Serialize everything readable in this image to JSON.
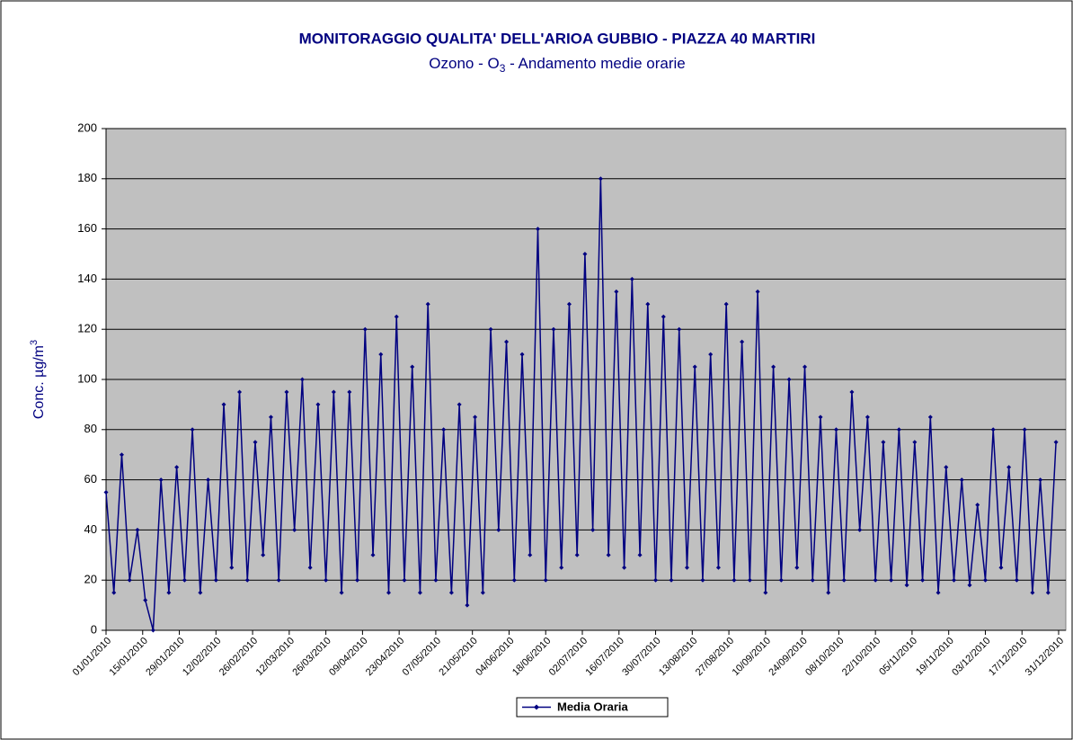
{
  "chart_data": {
    "type": "line",
    "title": "MONITORAGGIO QUALITA' DELL'ARIOA GUBBIO - PIAZZA 40 MARTIRI",
    "subtitle": [
      "Ozono - O",
      "3",
      " - Andamento medie orarie"
    ],
    "y_label": [
      "Conc.  µg/m",
      "3"
    ],
    "x": [
      "01/01/2010",
      "04/01/2010",
      "07/01/2010",
      "10/01/2010",
      "13/01/2010",
      "16/01/2010",
      "19/01/2010",
      "22/01/2010",
      "25/01/2010",
      "28/01/2010",
      "31/01/2010",
      "03/02/2010",
      "06/02/2010",
      "09/02/2010",
      "12/02/2010",
      "15/02/2010",
      "18/02/2010",
      "21/02/2010",
      "24/02/2010",
      "27/02/2010",
      "02/03/2010",
      "05/03/2010",
      "08/03/2010",
      "11/03/2010",
      "14/03/2010",
      "17/03/2010",
      "20/03/2010",
      "23/03/2010",
      "26/03/2010",
      "29/03/2010",
      "01/04/2010",
      "04/04/2010",
      "07/04/2010",
      "10/04/2010",
      "13/04/2010",
      "16/04/2010",
      "19/04/2010",
      "22/04/2010",
      "25/04/2010",
      "28/04/2010",
      "01/05/2010",
      "04/05/2010",
      "07/05/2010",
      "10/05/2010",
      "13/05/2010",
      "16/05/2010",
      "19/05/2010",
      "22/05/2010",
      "25/05/2010",
      "28/05/2010",
      "31/05/2010",
      "03/06/2010",
      "06/06/2010",
      "09/06/2010",
      "12/06/2010",
      "15/06/2010",
      "18/06/2010",
      "21/06/2010",
      "24/06/2010",
      "27/06/2010",
      "30/06/2010",
      "03/07/2010",
      "06/07/2010",
      "09/07/2010",
      "12/07/2010",
      "15/07/2010",
      "18/07/2010",
      "21/07/2010",
      "24/07/2010",
      "27/07/2010",
      "30/07/2010",
      "02/08/2010",
      "05/08/2010",
      "08/08/2010",
      "11/08/2010",
      "14/08/2010",
      "17/08/2010",
      "20/08/2010",
      "23/08/2010",
      "26/08/2010",
      "29/08/2010",
      "01/09/2010",
      "04/09/2010",
      "07/09/2010",
      "10/09/2010",
      "13/09/2010",
      "16/09/2010",
      "19/09/2010",
      "22/09/2010",
      "25/09/2010",
      "28/09/2010",
      "01/10/2010",
      "04/10/2010",
      "07/10/2010",
      "10/10/2010",
      "13/10/2010",
      "16/10/2010",
      "19/10/2010",
      "22/10/2010",
      "25/10/2010",
      "28/10/2010",
      "31/10/2010",
      "03/11/2010",
      "06/11/2010",
      "09/11/2010",
      "12/11/2010",
      "15/11/2010",
      "18/11/2010",
      "21/11/2010",
      "24/11/2010",
      "27/11/2010",
      "30/11/2010",
      "03/12/2010",
      "06/12/2010",
      "09/12/2010",
      "12/12/2010",
      "15/12/2010",
      "18/12/2010",
      "21/12/2010",
      "24/12/2010",
      "27/12/2010",
      "30/12/2010"
    ],
    "series": [
      {
        "name": "Media Oraria",
        "color": "#000080",
        "values": [
          55,
          15,
          70,
          20,
          40,
          12,
          0,
          60,
          15,
          65,
          20,
          80,
          15,
          60,
          20,
          90,
          25,
          95,
          20,
          75,
          30,
          85,
          20,
          95,
          40,
          100,
          25,
          90,
          20,
          95,
          15,
          95,
          20,
          120,
          30,
          110,
          15,
          125,
          20,
          105,
          15,
          130,
          20,
          80,
          15,
          90,
          10,
          85,
          15,
          120,
          40,
          115,
          20,
          110,
          30,
          160,
          20,
          120,
          25,
          130,
          30,
          150,
          40,
          180,
          30,
          135,
          25,
          140,
          30,
          130,
          20,
          125,
          20,
          120,
          25,
          105,
          20,
          110,
          25,
          130,
          20,
          115,
          20,
          135,
          15,
          105,
          20,
          100,
          25,
          105,
          20,
          85,
          15,
          80,
          20,
          95,
          40,
          85,
          20,
          75,
          20,
          80,
          18,
          75,
          20,
          85,
          15,
          65,
          20,
          60,
          18,
          50,
          20,
          80,
          25,
          65,
          20,
          80,
          15,
          60,
          15,
          75
        ]
      }
    ],
    "xlim": [
      "01/01/2010",
      "31/12/2010"
    ],
    "xticks": [
      "01/01/2010",
      "15/01/2010",
      "29/01/2010",
      "12/02/2010",
      "26/02/2010",
      "12/03/2010",
      "26/03/2010",
      "09/04/2010",
      "23/04/2010",
      "07/05/2010",
      "21/05/2010",
      "04/06/2010",
      "18/06/2010",
      "02/07/2010",
      "16/07/2010",
      "30/07/2010",
      "13/08/2010",
      "27/08/2010",
      "10/09/2010",
      "24/09/2010",
      "08/10/2010",
      "22/10/2010",
      "05/11/2010",
      "19/11/2010",
      "03/12/2010",
      "17/12/2010",
      "31/12/2010"
    ],
    "ylim": [
      0,
      200
    ],
    "yticks": [
      0,
      20,
      40,
      60,
      80,
      100,
      120,
      140,
      160,
      180,
      200
    ],
    "grid": true,
    "legend": "bottom",
    "plot_background": "#c0c0c0"
  }
}
